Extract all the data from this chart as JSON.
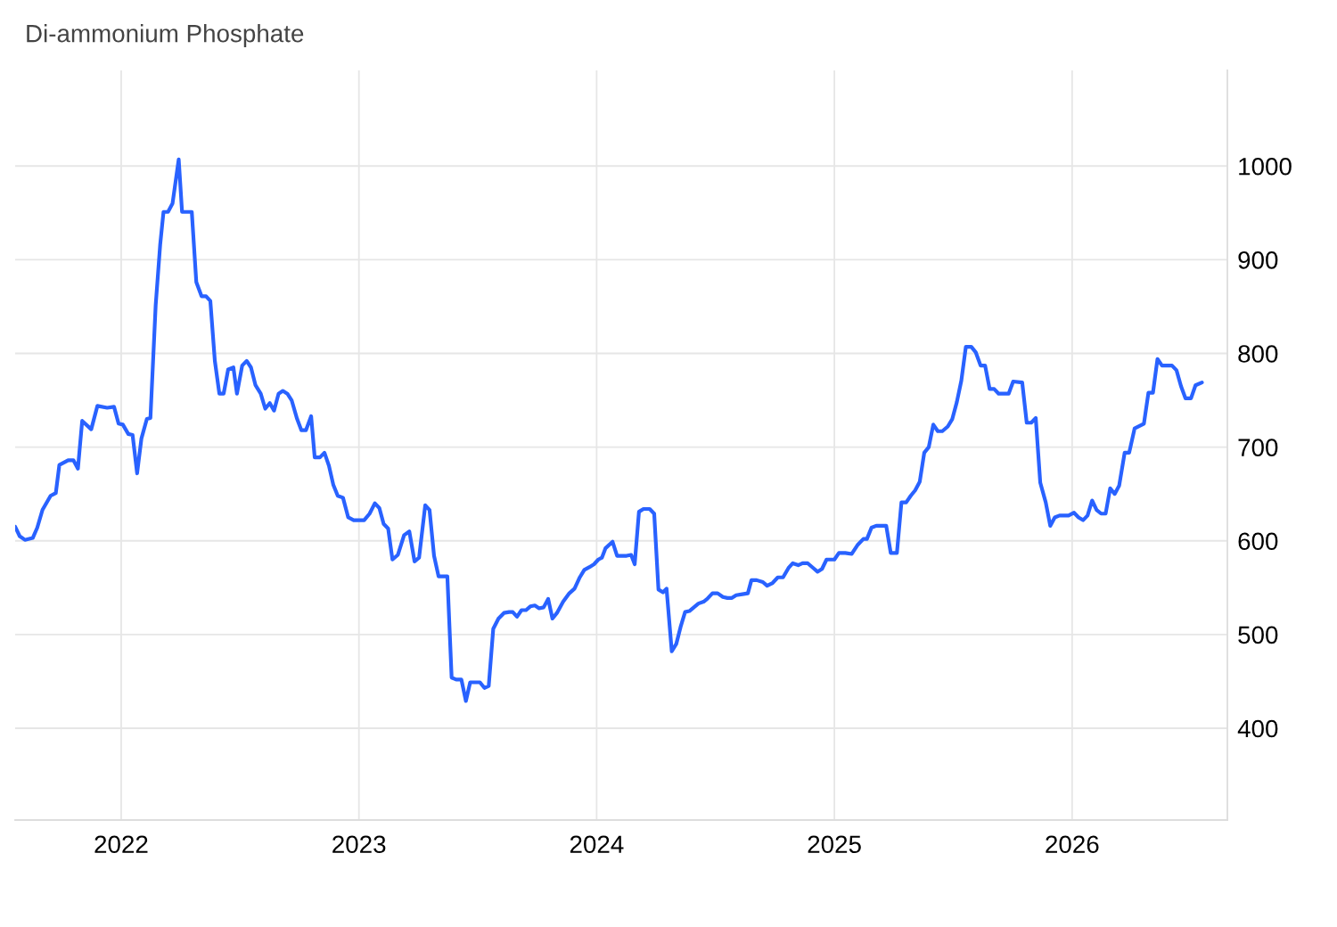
{
  "chart_data": {
    "type": "line",
    "title": "Di-ammonium Phosphate",
    "x": [
      2021.554,
      2021.573,
      2021.595,
      2021.628,
      2021.647,
      2021.669,
      2021.703,
      2021.725,
      2021.74,
      2021.777,
      2021.799,
      2021.818,
      2021.836,
      2021.874,
      2021.9,
      2021.941,
      2021.97,
      2021.989,
      2022.007,
      2022.03,
      2022.048,
      2022.067,
      2022.085,
      2022.108,
      2022.123,
      2022.145,
      2022.164,
      2022.178,
      2022.197,
      2022.216,
      2022.242,
      2022.256,
      2022.297,
      2022.316,
      2022.338,
      2022.357,
      2022.375,
      2022.394,
      2022.413,
      2022.431,
      2022.45,
      2022.472,
      2022.487,
      2022.509,
      2022.528,
      2022.546,
      2022.565,
      2022.587,
      2022.606,
      2022.625,
      2022.643,
      2022.662,
      2022.68,
      2022.699,
      2022.717,
      2022.74,
      2022.758,
      2022.777,
      2022.799,
      2022.814,
      2022.836,
      2022.855,
      2022.874,
      2022.892,
      2022.911,
      2022.933,
      2022.955,
      2022.978,
      2023.022,
      2023.045,
      2023.067,
      2023.086,
      2023.104,
      2023.123,
      2023.141,
      2023.164,
      2023.19,
      2023.212,
      2023.234,
      2023.253,
      2023.279,
      2023.297,
      2023.316,
      2023.335,
      2023.372,
      2023.39,
      2023.409,
      2023.431,
      2023.45,
      2023.468,
      2023.509,
      2023.528,
      2023.546,
      2023.565,
      2023.587,
      2023.61,
      2023.632,
      2023.647,
      2023.665,
      2023.684,
      2023.703,
      2023.721,
      2023.74,
      2023.758,
      2023.777,
      2023.796,
      2023.814,
      2023.833,
      2023.859,
      2023.885,
      2023.907,
      2023.929,
      2023.948,
      2023.97,
      2023.989,
      2024.007,
      2024.022,
      2024.037,
      2024.067,
      2024.086,
      2024.126,
      2024.145,
      2024.16,
      2024.178,
      2024.197,
      2024.223,
      2024.242,
      2024.26,
      2024.279,
      2024.294,
      2024.316,
      2024.335,
      2024.353,
      2024.372,
      2024.39,
      2024.409,
      2024.428,
      2024.45,
      2024.465,
      2024.487,
      2024.509,
      2024.531,
      2024.55,
      2024.569,
      2024.587,
      2024.613,
      2024.636,
      2024.651,
      2024.673,
      2024.699,
      2024.717,
      2024.74,
      2024.762,
      2024.784,
      2024.807,
      2024.825,
      2024.848,
      2024.866,
      2024.888,
      2024.911,
      2024.929,
      2024.948,
      2024.967,
      2025.0,
      2025.019,
      2025.046,
      2025.073,
      2025.099,
      2025.122,
      2025.137,
      2025.156,
      2025.176,
      2025.218,
      2025.237,
      2025.263,
      2025.282,
      2025.302,
      2025.321,
      2025.34,
      2025.359,
      2025.378,
      2025.397,
      2025.416,
      2025.435,
      2025.454,
      2025.477,
      2025.496,
      2025.515,
      2025.534,
      2025.553,
      2025.576,
      2025.595,
      2025.615,
      2025.634,
      2025.653,
      2025.672,
      2025.691,
      2025.733,
      2025.752,
      2025.79,
      2025.809,
      2025.828,
      2025.847,
      2025.866,
      2025.889,
      2025.908,
      2025.927,
      2025.947,
      2025.985,
      2026.008,
      2026.027,
      2026.046,
      2026.065,
      2026.084,
      2026.103,
      2026.122,
      2026.141,
      2026.16,
      2026.179,
      2026.198,
      2026.221,
      2026.24,
      2026.263,
      2026.302,
      2026.321,
      2026.34,
      2026.359,
      2026.378,
      2026.42,
      2026.439,
      2026.458,
      2026.477,
      2026.5,
      2026.519,
      2026.546
    ],
    "series": [
      {
        "color": "#2962ff",
        "values": [
          615,
          605,
          601,
          603,
          614,
          633,
          648,
          651,
          681,
          686,
          686,
          677,
          728,
          719,
          744,
          742,
          743,
          725,
          724,
          714,
          713,
          672,
          709,
          730,
          731,
          851,
          916,
          951,
          951,
          960,
          1007,
          951,
          951,
          876,
          861,
          861,
          856,
          792,
          757,
          757,
          783,
          785,
          757,
          787,
          792,
          785,
          766,
          757,
          741,
          747,
          739,
          757,
          760,
          757,
          750,
          730,
          718,
          718,
          733,
          689,
          689,
          694,
          680,
          660,
          648,
          646,
          625,
          622,
          622,
          629,
          640,
          635,
          618,
          613,
          580,
          585,
          606,
          610,
          578,
          582,
          638,
          633,
          584,
          562,
          562,
          454,
          452,
          452,
          429,
          449,
          449,
          443,
          445,
          506,
          517,
          523,
          524,
          524,
          519,
          526,
          526,
          530,
          531,
          528,
          529,
          538,
          517,
          523,
          535,
          544,
          549,
          561,
          569,
          572,
          575,
          580,
          582,
          592,
          599,
          584,
          584,
          585,
          575,
          631,
          634,
          634,
          629,
          548,
          545,
          549,
          482,
          490,
          508,
          524,
          525,
          529,
          533,
          535,
          538,
          544,
          544,
          540,
          539,
          539,
          542,
          543,
          544,
          558,
          558,
          556,
          552,
          555,
          561,
          561,
          571,
          576,
          574,
          576,
          576,
          571,
          567,
          570,
          580,
          580,
          587,
          587,
          586,
          596,
          602,
          602,
          614,
          616,
          616,
          587,
          587,
          641,
          641,
          648,
          654,
          663,
          694,
          700,
          724,
          717,
          717,
          722,
          730,
          748,
          771,
          807,
          807,
          801,
          787,
          787,
          762,
          762,
          757,
          757,
          770,
          769,
          726,
          726,
          731,
          662,
          641,
          616,
          625,
          627,
          627,
          630,
          625,
          622,
          627,
          643,
          633,
          629,
          629,
          656,
          650,
          659,
          694,
          694,
          720,
          725,
          758,
          758,
          794,
          787,
          787,
          782,
          765,
          752,
          752,
          766,
          769
        ]
      }
    ],
    "xlim": [
      2021.554,
      2026.653
    ],
    "ylim": [
      302,
      1102
    ],
    "xticks": [
      2022,
      2023,
      2024,
      2025,
      2026
    ],
    "yticks": [
      400,
      500,
      600,
      700,
      800,
      900,
      1000
    ],
    "grid": true,
    "marker": "none",
    "line_style": "solid"
  }
}
